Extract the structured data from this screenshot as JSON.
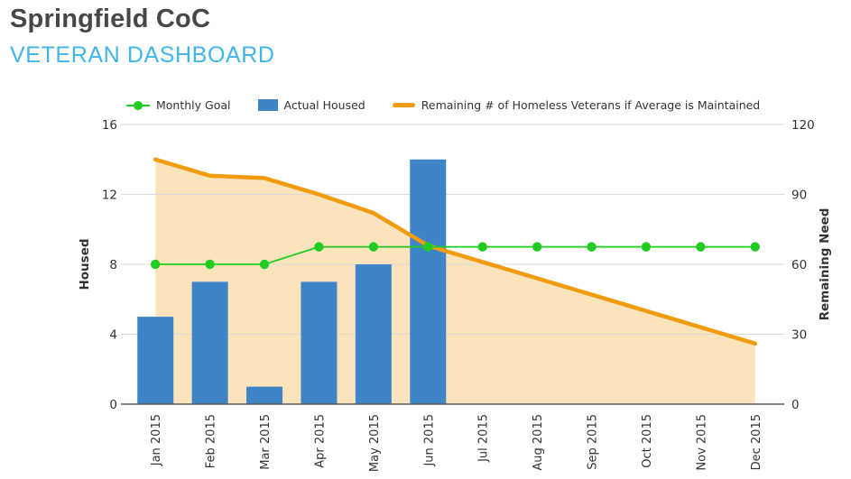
{
  "header": {
    "title": "Springfield CoC",
    "subtitle": "VETERAN DASHBOARD"
  },
  "colors": {
    "title_text": "#474747",
    "subtitle_text": "#41b6e6",
    "goal_green": "#1fcc1f",
    "bar_blue": "#3d85c6",
    "remaining_orange": "#f29b0d",
    "area_fill": "rgba(242,155,13,0.28)",
    "gridline": "#d9d9d9",
    "axis_line": "#595959",
    "tick_text": "#333333"
  },
  "chart_data": {
    "type": "combo",
    "categories": [
      "Jan 2015",
      "Feb 2015",
      "Mar 2015",
      "Apr 2015",
      "May 2015",
      "Jun 2015",
      "Jul 2015",
      "Aug 2015",
      "Sep 2015",
      "Oct 2015",
      "Nov 2015",
      "Dec 2015"
    ],
    "series": [
      {
        "name": "Monthly Goal",
        "type": "line",
        "marker": "circle",
        "color": "#1fcc1f",
        "axis": "left",
        "values": [
          8,
          8,
          8,
          9,
          9,
          9,
          9,
          9,
          9,
          9,
          9,
          9
        ]
      },
      {
        "name": "Actual Housed",
        "type": "bar",
        "color": "#3d85c6",
        "axis": "left",
        "values": [
          5,
          7,
          1,
          7,
          8,
          14,
          null,
          null,
          null,
          null,
          null,
          null
        ]
      },
      {
        "name": "Remaining # of Homeless Veterans if Average is Maintained",
        "type": "area-line",
        "color": "#f29b0d",
        "axis": "right",
        "values": [
          105,
          98,
          97,
          90,
          82,
          68,
          61,
          54,
          47,
          40,
          33,
          26
        ]
      }
    ],
    "axes": {
      "left": {
        "label": "Housed",
        "min": 0,
        "max": 16,
        "ticks": [
          0,
          4,
          8,
          12,
          16
        ]
      },
      "right": {
        "label": "Remaining Need",
        "min": 0,
        "max": 120,
        "ticks": [
          0,
          30,
          60,
          90,
          120
        ]
      }
    },
    "grid": true,
    "legend_position": "top"
  }
}
